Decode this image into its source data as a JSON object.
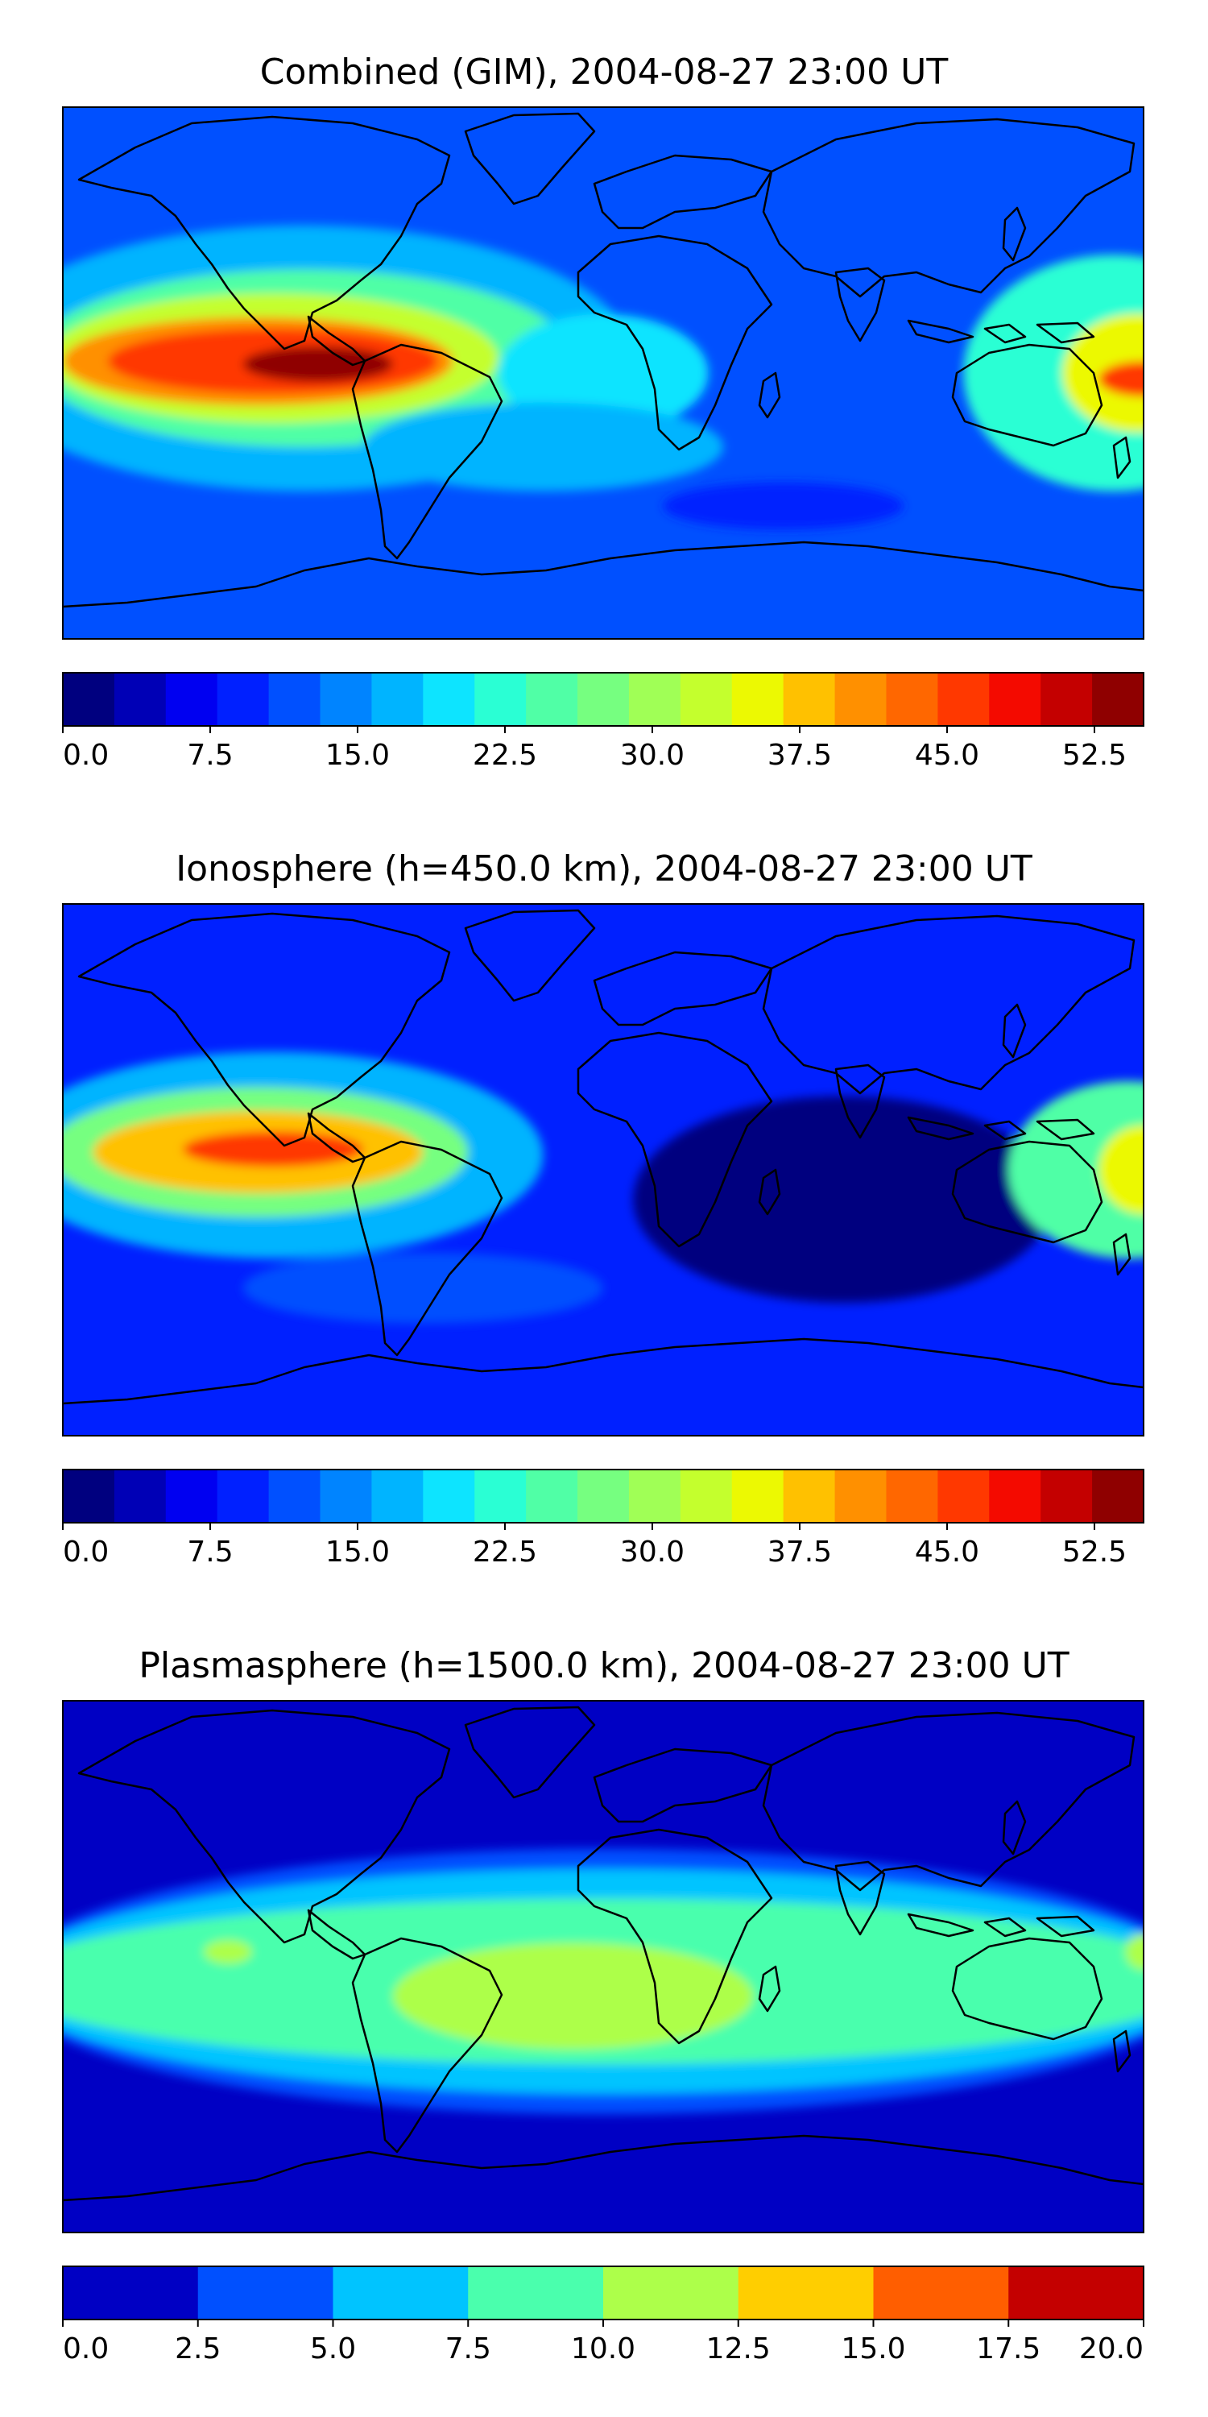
{
  "maps": [
    {
      "title": "Combined (GIM), 2004-08-27 23:00 UT",
      "colorbar": {
        "min": 0,
        "max": 55,
        "step": 2.5,
        "tick_labels": [
          "0.0",
          "7.5",
          "15.0",
          "22.5",
          "30.0",
          "37.5",
          "45.0",
          "52.5"
        ],
        "tick_values": [
          0,
          7.5,
          15,
          22.5,
          30,
          37.5,
          45,
          52.5
        ],
        "colors": [
          "#00007f",
          "#0000b6",
          "#0000f1",
          "#0020ff",
          "#0050ff",
          "#0084ff",
          "#00b4ff",
          "#0de4ff",
          "#2affd4",
          "#50ffa6",
          "#76ff80",
          "#a0ff56",
          "#c4ff2d",
          "#ecf902",
          "#ffc100",
          "#ff9000",
          "#ff6700",
          "#ff3800",
          "#f40a00",
          "#c40000",
          "#8f0000"
        ]
      },
      "field": {
        "background": "#0050ff",
        "blobs": [
          {
            "lon": -100,
            "lat": 5,
            "rx": 110,
            "ry": 45,
            "value": 15
          },
          {
            "lon": -100,
            "lat": 5,
            "rx": 90,
            "ry": 30,
            "value": 22.5
          },
          {
            "lon": -110,
            "lat": 5,
            "rx": 75,
            "ry": 22,
            "value": 30
          },
          {
            "lon": -115,
            "lat": 4,
            "rx": 65,
            "ry": 15,
            "value": 37.5
          },
          {
            "lon": -110,
            "lat": 4,
            "rx": 55,
            "ry": 11,
            "value": 42.5
          },
          {
            "lon": -95,
            "lat": 3,
            "rx": 25,
            "ry": 6,
            "value": 50
          },
          {
            "lon": -95,
            "lat": 3,
            "rx": 12,
            "ry": 3,
            "value": 52.5
          },
          {
            "lon": 170,
            "lat": 0,
            "rx": 50,
            "ry": 40,
            "value": 20
          },
          {
            "lon": 178,
            "lat": 0,
            "rx": 25,
            "ry": 20,
            "value": 32.5
          },
          {
            "lon": 180,
            "lat": -2,
            "rx": 15,
            "ry": 6,
            "value": 42.5
          },
          {
            "lon": 0,
            "lat": 0,
            "rx": 35,
            "ry": 20,
            "value": 17.5
          },
          {
            "lon": -20,
            "lat": -25,
            "rx": 60,
            "ry": 15,
            "value": 15
          },
          {
            "lon": 60,
            "lat": -45,
            "rx": 40,
            "ry": 8,
            "value": 7.5
          }
        ]
      }
    },
    {
      "title": "Ionosphere  (h=450.0 km), 2004-08-27 23:00 UT",
      "colorbar": {
        "min": 0,
        "max": 55,
        "step": 2.5,
        "tick_labels": [
          "0.0",
          "7.5",
          "15.0",
          "22.5",
          "30.0",
          "37.5",
          "45.0",
          "52.5"
        ],
        "tick_values": [
          0,
          7.5,
          15,
          22.5,
          30,
          37.5,
          45,
          52.5
        ],
        "colors": [
          "#00007f",
          "#0000b6",
          "#0000f1",
          "#0020ff",
          "#0050ff",
          "#0084ff",
          "#00b4ff",
          "#0de4ff",
          "#2affd4",
          "#50ffa6",
          "#76ff80",
          "#a0ff56",
          "#c4ff2d",
          "#ecf902",
          "#ffc100",
          "#ff9000",
          "#ff6700",
          "#ff3800",
          "#f40a00",
          "#c40000",
          "#8f0000"
        ]
      },
      "field": {
        "background": "#0020ff",
        "blobs": [
          {
            "lon": 80,
            "lat": -10,
            "rx": 70,
            "ry": 35,
            "value": 0
          },
          {
            "lon": -110,
            "lat": 5,
            "rx": 90,
            "ry": 35,
            "value": 15
          },
          {
            "lon": -115,
            "lat": 6,
            "rx": 70,
            "ry": 22,
            "value": 25
          },
          {
            "lon": -115,
            "lat": 6,
            "rx": 55,
            "ry": 14,
            "value": 35
          },
          {
            "lon": -110,
            "lat": 7,
            "rx": 30,
            "ry": 6,
            "value": 42.5
          },
          {
            "lon": 175,
            "lat": 0,
            "rx": 40,
            "ry": 30,
            "value": 22.5
          },
          {
            "lon": 180,
            "lat": 0,
            "rx": 15,
            "ry": 15,
            "value": 32.5
          },
          {
            "lon": -60,
            "lat": -40,
            "rx": 60,
            "ry": 12,
            "value": 10
          }
        ]
      }
    },
    {
      "title": "Plasmasphere (h=1500.0 km), 2004-08-27 23:00 UT",
      "colorbar": {
        "min": 0,
        "max": 20,
        "step": 2.5,
        "tick_labels": [
          "0.0",
          "2.5",
          "5.0",
          "7.5",
          "10.0",
          "12.5",
          "15.0",
          "17.5",
          "20.0"
        ],
        "tick_values": [
          0,
          2.5,
          5,
          7.5,
          10,
          12.5,
          15,
          17.5,
          20
        ],
        "colors": [
          "#0000c4",
          "#0050ff",
          "#00c4ff",
          "#4affad",
          "#adff4a",
          "#ffce00",
          "#ff5e00",
          "#c40000"
        ]
      },
      "field": {
        "background": "#0000c4",
        "blobs": [
          {
            "lon": 0,
            "lat": -5,
            "rx": 200,
            "ry": 45,
            "value": 2.5
          },
          {
            "lon": 0,
            "lat": -5,
            "rx": 200,
            "ry": 38,
            "value": 5
          },
          {
            "lon": 0,
            "lat": -5,
            "rx": 200,
            "ry": 28,
            "value": 7.5
          },
          {
            "lon": -10,
            "lat": -10,
            "rx": 60,
            "ry": 18,
            "value": 10
          },
          {
            "lon": -125,
            "lat": 5,
            "rx": 8,
            "ry": 4,
            "value": 10
          },
          {
            "lon": 180,
            "lat": 5,
            "rx": 6,
            "ry": 6,
            "value": 10
          }
        ]
      }
    }
  ]
}
